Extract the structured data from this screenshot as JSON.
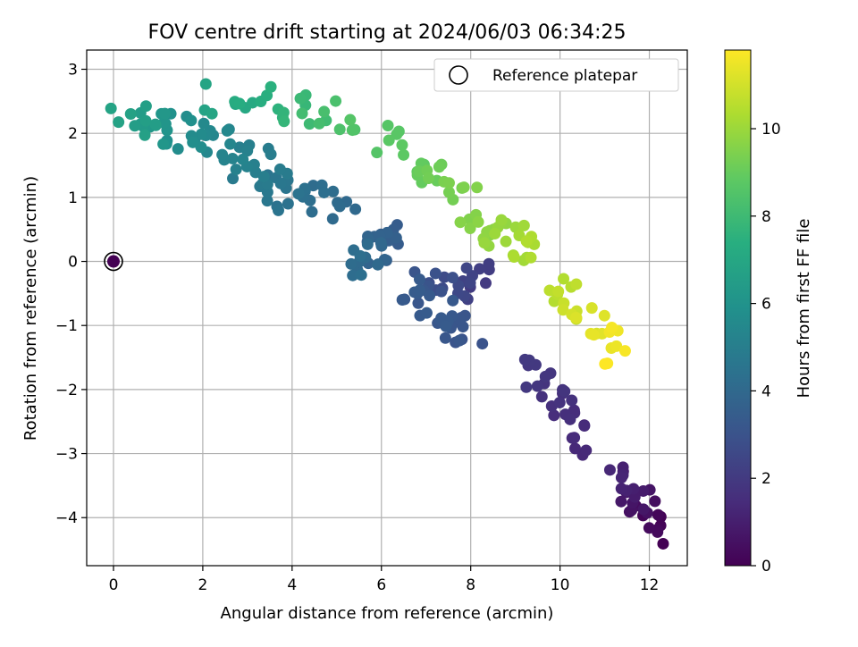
{
  "chart_data": {
    "type": "scatter",
    "title": "FOV centre drift starting at 2024/06/03 06:34:25",
    "xlabel": "Angular distance from reference (arcmin)",
    "ylabel": "Rotation from reference (arcmin)",
    "xlim": [
      -0.6,
      12.85
    ],
    "ylim": [
      -4.75,
      3.3
    ],
    "xticks": [
      0,
      2,
      4,
      6,
      8,
      10,
      12
    ],
    "yticks": [
      3,
      2,
      1,
      0,
      -1,
      -2,
      -3,
      -4
    ],
    "xtick_labels": [
      "0",
      "2",
      "4",
      "6",
      "8",
      "10",
      "12"
    ],
    "ytick_labels": [
      "3",
      "2",
      "1",
      "0",
      "−1",
      "−2",
      "−3",
      "−4"
    ],
    "grid": true,
    "legend": {
      "placement": "top-right",
      "entries": [
        "Reference platepar"
      ]
    },
    "colorbar": {
      "label": "Hours from first FF file",
      "range": [
        0,
        11.8
      ],
      "ticks": [
        0,
        2,
        4,
        6,
        8,
        10
      ],
      "tick_labels": [
        "0",
        "2",
        "4",
        "6",
        "8",
        "10"
      ],
      "colormap": "viridis"
    },
    "reference_point": {
      "x": 0,
      "y": 0,
      "hours": 0
    },
    "segments": [
      {
        "hours": [
          0.0,
          1.3
        ],
        "x": [
          12.2,
          11.2
        ],
        "y": [
          -4.3,
          -3.2
        ]
      },
      {
        "hours": [
          1.3,
          2.0
        ],
        "x": [
          10.6,
          9.4
        ],
        "y": [
          -2.8,
          -1.7
        ]
      },
      {
        "hours": [
          2.0,
          3.4
        ],
        "x": [
          8.4,
          6.6
        ],
        "y": [
          -0.3,
          -0.4
        ]
      },
      {
        "hours": [
          3.0,
          3.4
        ],
        "x": [
          8.0,
          7.0
        ],
        "y": [
          -1.2,
          -0.7
        ]
      },
      {
        "hours": [
          3.4,
          4.3
        ],
        "x": [
          6.2,
          5.5
        ],
        "y": [
          0.3,
          0.0
        ]
      },
      {
        "hours": [
          4.0,
          4.8
        ],
        "x": [
          5.2,
          3.0
        ],
        "y": [
          0.85,
          1.2
        ]
      },
      {
        "hours": [
          4.8,
          5.6
        ],
        "x": [
          3.6,
          2.1
        ],
        "y": [
          1.4,
          2.05
        ]
      },
      {
        "hours": [
          5.6,
          6.8
        ],
        "x": [
          1.8,
          0.2
        ],
        "y": [
          2.0,
          2.2
        ]
      },
      {
        "hours": [
          6.8,
          8.6
        ],
        "x": [
          2.2,
          5.4
        ],
        "y": [
          2.6,
          2.3
        ]
      },
      {
        "hours": [
          8.6,
          9.6
        ],
        "x": [
          6.2,
          8.0
        ],
        "y": [
          1.9,
          0.8
        ]
      },
      {
        "hours": [
          9.6,
          10.4
        ],
        "x": [
          8.2,
          9.3
        ],
        "y": [
          0.6,
          0.1
        ]
      },
      {
        "hours": [
          10.4,
          11.8
        ],
        "x": [
          9.8,
          11.3
        ],
        "y": [
          -0.4,
          -1.4
        ]
      }
    ]
  }
}
